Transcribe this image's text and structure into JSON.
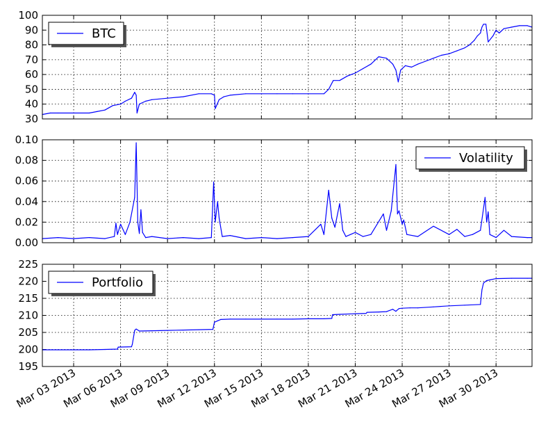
{
  "chart_data": [
    {
      "type": "line",
      "panel": "top",
      "ylim": [
        30,
        100
      ],
      "yticks": [
        30,
        40,
        50,
        60,
        70,
        80,
        90,
        100
      ],
      "legend_placement": "upper-left",
      "grid": true,
      "series": [
        {
          "name": "BTC",
          "color": "#0000ff",
          "x": [
            1.0,
            1.5,
            2.0,
            3.0,
            4.0,
            4.5,
            5.0,
            5.5,
            6.0,
            6.3,
            6.7,
            6.9,
            7.0,
            7.05,
            7.2,
            7.6,
            8.0,
            9.0,
            10.0,
            11.0,
            11.8,
            12.0,
            12.05,
            12.3,
            12.6,
            13.0,
            14.0,
            15.0,
            16.0,
            17.0,
            18.0,
            19.0,
            19.3,
            19.6,
            20.0,
            20.5,
            21.0,
            21.5,
            22.0,
            22.5,
            23.0,
            23.4,
            23.6,
            23.75,
            23.9,
            24.2,
            24.6,
            25.0,
            25.5,
            26.0,
            26.5,
            27.0,
            27.5,
            28.0,
            28.3,
            28.6,
            28.8,
            29.0,
            29.1,
            29.2,
            29.35,
            29.5,
            29.8,
            30.0,
            30.2,
            30.5,
            31.0,
            31.5,
            32.0,
            32.3
          ],
          "values": [
            33,
            34,
            34,
            34,
            34,
            35,
            36,
            39,
            40,
            42,
            44,
            48,
            46,
            34,
            40,
            42,
            43,
            44,
            45,
            47,
            47,
            46,
            37,
            43,
            45,
            46,
            47,
            47,
            47,
            47,
            47,
            47,
            50,
            56,
            56,
            59,
            61,
            64,
            67,
            72,
            71,
            67,
            63,
            55,
            63,
            66,
            65,
            67,
            69,
            71,
            73,
            74,
            76,
            78,
            80,
            83,
            86,
            88,
            92,
            94,
            94,
            82,
            86,
            90,
            88,
            91,
            92,
            93,
            93,
            92
          ]
        }
      ]
    },
    {
      "type": "line",
      "panel": "middle",
      "ylim": [
        0.0,
        0.1
      ],
      "yticks": [
        "0.00",
        "0.02",
        "0.04",
        "0.06",
        "0.08",
        "0.10"
      ],
      "legend_placement": "upper-right",
      "grid": true,
      "series": [
        {
          "name": "Volatility",
          "color": "#0000ff",
          "x": [
            1.0,
            2.0,
            3.0,
            4.0,
            5.0,
            5.6,
            5.7,
            5.8,
            6.0,
            6.3,
            6.6,
            6.9,
            7.0,
            7.1,
            7.2,
            7.3,
            7.4,
            7.6,
            8.0,
            9.0,
            10.0,
            11.0,
            11.8,
            11.95,
            12.05,
            12.2,
            12.3,
            12.5,
            13.0,
            14.0,
            15.0,
            16.0,
            17.0,
            18.0,
            18.8,
            19.0,
            19.3,
            19.5,
            19.7,
            20.0,
            20.2,
            20.4,
            21.0,
            21.5,
            22.0,
            22.8,
            23.0,
            23.3,
            23.6,
            23.7,
            23.8,
            24.0,
            24.1,
            24.3,
            25.0,
            26.0,
            27.0,
            27.5,
            28.0,
            28.5,
            29.0,
            29.3,
            29.4,
            29.5,
            29.6,
            30.0,
            30.5,
            31.0,
            32.0,
            32.3
          ],
          "values": [
            0.004,
            0.005,
            0.004,
            0.005,
            0.004,
            0.006,
            0.019,
            0.008,
            0.018,
            0.008,
            0.02,
            0.044,
            0.097,
            0.02,
            0.009,
            0.032,
            0.01,
            0.005,
            0.006,
            0.004,
            0.005,
            0.004,
            0.005,
            0.059,
            0.02,
            0.04,
            0.024,
            0.006,
            0.007,
            0.004,
            0.005,
            0.004,
            0.005,
            0.006,
            0.018,
            0.008,
            0.051,
            0.024,
            0.015,
            0.038,
            0.012,
            0.006,
            0.01,
            0.006,
            0.008,
            0.028,
            0.012,
            0.031,
            0.076,
            0.028,
            0.031,
            0.018,
            0.022,
            0.008,
            0.006,
            0.016,
            0.008,
            0.013,
            0.006,
            0.008,
            0.012,
            0.044,
            0.02,
            0.03,
            0.008,
            0.005,
            0.012,
            0.006,
            0.005,
            0.005
          ]
        }
      ]
    },
    {
      "type": "line",
      "panel": "bottom",
      "ylim": [
        195,
        225
      ],
      "yticks": [
        195,
        200,
        205,
        210,
        215,
        220,
        225
      ],
      "legend_placement": "upper-left",
      "grid": true,
      "series": [
        {
          "name": "Portfolio",
          "color": "#0000ff",
          "x": [
            1.0,
            2.0,
            3.0,
            4.0,
            5.0,
            5.8,
            5.85,
            6.7,
            6.75,
            6.9,
            7.0,
            7.2,
            8.0,
            9.0,
            10.0,
            11.0,
            11.9,
            12.0,
            12.2,
            12.4,
            13.0,
            14.0,
            15.0,
            16.0,
            17.0,
            18.0,
            19.0,
            19.5,
            19.55,
            20.0,
            21.0,
            21.7,
            21.75,
            22.5,
            23.0,
            23.4,
            23.6,
            23.8,
            24.0,
            24.5,
            25.0,
            26.0,
            27.0,
            28.0,
            29.0,
            29.1,
            29.2,
            29.4,
            29.6,
            30.0,
            31.0,
            32.0,
            32.3
          ],
          "values": [
            199.9,
            199.9,
            199.9,
            199.9,
            200.0,
            200.1,
            200.7,
            200.8,
            201.5,
            205.6,
            206.0,
            205.4,
            205.5,
            205.6,
            205.7,
            205.8,
            205.9,
            208.0,
            208.4,
            208.8,
            208.9,
            208.9,
            208.9,
            208.9,
            208.9,
            209.0,
            209.0,
            209.1,
            210.2,
            210.3,
            210.5,
            210.6,
            210.9,
            211.0,
            211.1,
            211.8,
            211.2,
            212.0,
            212.1,
            212.2,
            212.2,
            212.5,
            212.8,
            213.0,
            213.2,
            217.5,
            219.5,
            220.2,
            220.4,
            220.8,
            220.9,
            220.9,
            220.9
          ]
        }
      ]
    }
  ],
  "x_axis": {
    "range": [
      1.0,
      32.3
    ],
    "tick_days": [
      3,
      6,
      9,
      12,
      15,
      18,
      21,
      24,
      27,
      30
    ],
    "tick_labels": [
      "Mar 03 2013",
      "Mar 06 2013",
      "Mar 09 2013",
      "Mar 12 2013",
      "Mar 15 2013",
      "Mar 18 2013",
      "Mar 21 2013",
      "Mar 24 2013",
      "Mar 27 2013",
      "Mar 30 2013"
    ]
  }
}
